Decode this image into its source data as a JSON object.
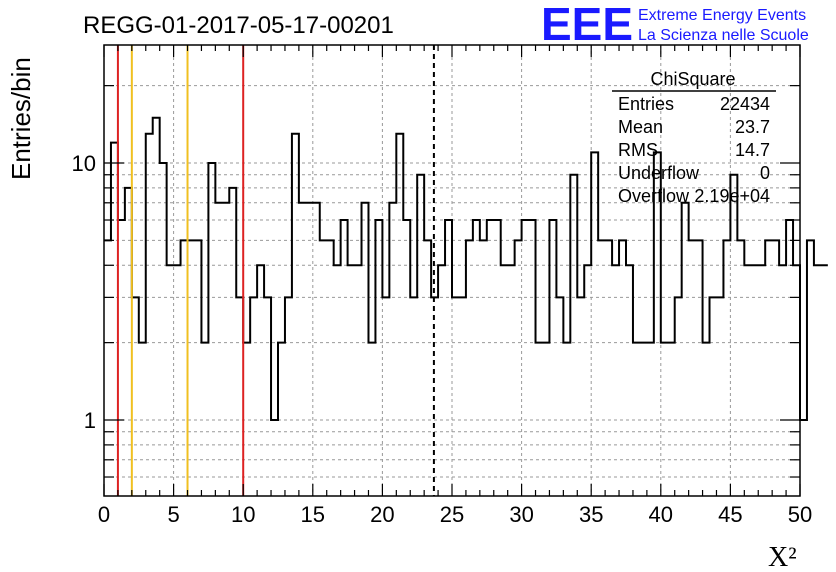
{
  "chart_data": {
    "type": "histogram",
    "title": "REGG-01-2017-05-17-00201",
    "xlabel": "X²",
    "ylabel": "Entries/bin",
    "xlim": [
      0,
      50
    ],
    "ylim": [
      0.55,
      30
    ],
    "yscale": "log",
    "grid": true,
    "bin_width": 0.5,
    "x_ticks": [
      0,
      5,
      10,
      15,
      20,
      25,
      30,
      35,
      40,
      45,
      50
    ],
    "x_tick_labels": [
      "0",
      "5",
      "10",
      "15",
      "20",
      "25",
      "30",
      "35",
      "40",
      "45",
      "50"
    ],
    "y_ticks": [
      1,
      10
    ],
    "y_tick_labels": [
      "1",
      "10"
    ],
    "values": [
      5,
      12,
      6,
      8,
      3,
      2,
      13,
      15,
      10,
      4,
      4,
      5,
      5,
      5,
      2,
      10,
      7,
      7,
      8,
      3,
      2,
      3,
      4,
      3,
      1,
      2,
      3,
      13,
      7,
      7,
      7,
      5,
      5,
      4,
      6,
      4,
      4,
      7,
      2,
      6,
      3,
      7,
      13,
      6,
      3,
      9,
      5,
      3,
      4,
      6,
      3,
      3,
      5,
      6,
      5,
      6,
      6,
      4,
      4,
      5,
      6,
      6,
      2,
      2,
      6,
      3,
      2,
      9,
      3,
      4,
      11,
      5,
      5,
      4,
      5,
      4,
      2,
      2,
      2,
      11,
      2,
      2,
      3,
      7,
      5,
      5,
      2,
      3,
      3,
      5,
      9,
      5,
      4,
      4,
      4,
      5,
      5,
      4,
      6,
      4,
      1,
      5,
      4,
      4
    ],
    "vertical_lines": [
      {
        "x": 1.0,
        "color": "#dd2222",
        "style": "solid"
      },
      {
        "x": 2.0,
        "color": "#f0c020",
        "style": "solid"
      },
      {
        "x": 6.0,
        "color": "#f0c020",
        "style": "solid"
      },
      {
        "x": 10.0,
        "color": "#dd2222",
        "style": "solid"
      },
      {
        "x": 23.7,
        "color": "#000000",
        "style": "dashed"
      }
    ]
  },
  "stats": {
    "title": "ChiSquare",
    "rows": [
      {
        "label": "Entries",
        "value": "22434"
      },
      {
        "label": "Mean",
        "value": "23.7"
      },
      {
        "label": "RMS",
        "value": "14.7"
      },
      {
        "label": "Underflow",
        "value": "0"
      },
      {
        "label": "Overflow",
        "value": "2.19e+04"
      }
    ]
  },
  "logo": {
    "mark": "EEE",
    "line1": "Extreme Energy Events",
    "line2": "La Scienza nelle Scuole",
    "color": "#1a1aff"
  }
}
